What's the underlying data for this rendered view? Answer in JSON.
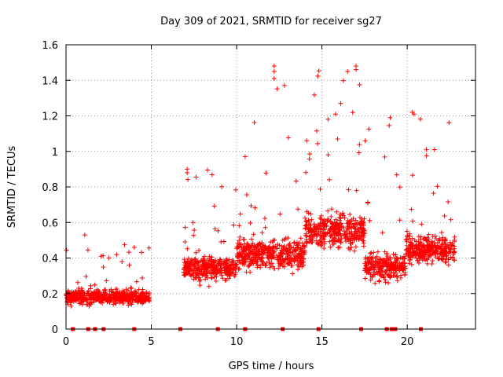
{
  "chart_data": {
    "type": "scatter",
    "title": "Day 309 of 2021, SRMTID for receiver sg27",
    "xlabel": "GPS time / hours",
    "ylabel": "SRMTID / TECUs",
    "xlim": [
      0,
      24
    ],
    "ylim": [
      0,
      1.6
    ],
    "x_ticks": [
      0,
      5,
      10,
      15,
      20
    ],
    "x_tick_labels": [
      "0",
      "5",
      "10",
      "15",
      "20"
    ],
    "y_ticks": [
      0,
      0.2,
      0.4,
      0.6,
      0.8,
      1,
      1.2,
      1.4,
      1.6
    ],
    "y_tick_labels": [
      "0",
      "0.2",
      "0.4",
      "0.6",
      "0.8",
      "1",
      "1.2",
      "1.4",
      "1.6"
    ],
    "grid": true,
    "marker": "+",
    "color": "#ff0000",
    "series": [
      {
        "name": "SRMTID",
        "segments": [
          {
            "x_start": 0.0,
            "x_end": 4.9,
            "center": 0.18,
            "spread": 0.08,
            "peak": 0.53
          },
          {
            "x_start": 6.9,
            "x_end": 10.0,
            "center": 0.34,
            "spread": 0.13,
            "peak": 0.9
          },
          {
            "x_start": 10.0,
            "x_end": 14.0,
            "center": 0.42,
            "spread": 0.17,
            "peak": 1.48
          },
          {
            "x_start": 14.0,
            "x_end": 17.5,
            "center": 0.55,
            "spread": 0.2,
            "peak": 1.49
          },
          {
            "x_start": 17.5,
            "x_end": 19.9,
            "center": 0.35,
            "spread": 0.15,
            "peak": 1.19
          },
          {
            "x_start": 19.9,
            "x_end": 22.8,
            "center": 0.45,
            "spread": 0.15,
            "peak": 1.22
          }
        ],
        "highlight_points": [
          {
            "x": 12.2,
            "y": 1.48
          },
          {
            "x": 12.2,
            "y": 1.45
          },
          {
            "x": 12.2,
            "y": 1.41
          },
          {
            "x": 16.5,
            "y": 1.45
          },
          {
            "x": 17.0,
            "y": 1.48
          },
          {
            "x": 17.0,
            "y": 1.46
          },
          {
            "x": 16.1,
            "y": 1.27
          },
          {
            "x": 15.8,
            "y": 1.21
          },
          {
            "x": 20.3,
            "y": 1.22
          },
          {
            "x": 20.4,
            "y": 1.21
          },
          {
            "x": 19.0,
            "y": 1.19
          },
          {
            "x": 21.6,
            "y": 1.01
          },
          {
            "x": 7.1,
            "y": 0.9
          },
          {
            "x": 7.1,
            "y": 0.88
          },
          {
            "x": 1.1,
            "y": 0.53
          },
          {
            "x": 4.0,
            "y": 0.46
          },
          {
            "x": 14.1,
            "y": 1.06
          },
          {
            "x": 10.5,
            "y": 0.97
          }
        ],
        "zero_points_x": [
          0.4,
          1.3,
          1.7,
          2.2,
          4.0,
          6.7,
          8.9,
          10.5,
          12.7,
          14.8,
          17.3,
          18.8,
          19.1,
          19.3,
          20.8
        ]
      }
    ]
  }
}
